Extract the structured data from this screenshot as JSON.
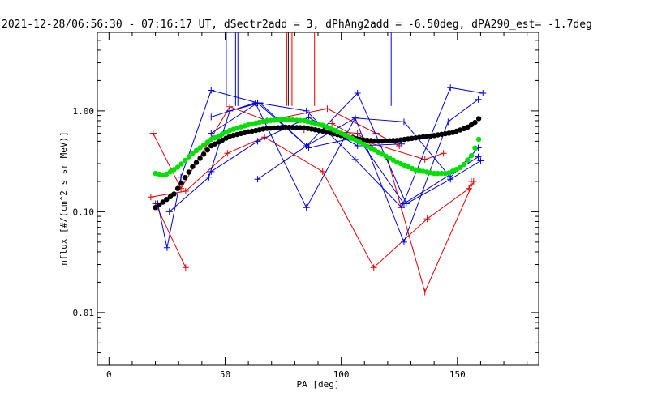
{
  "chart_data": {
    "type": "line",
    "title": "2021-12-28/06:56:30 - 07:16:17 UT, dSectr2add = 3, dPhAng2add = -6.50deg, dPA290_est=  -1.7deg",
    "xlabel": "PA [deg]",
    "ylabel": "nflux [#/(cm^2 s sr MeV)]",
    "xlim": [
      -5,
      185
    ],
    "ylim": [
      0.003,
      6
    ],
    "yscale": "log",
    "xticks": [
      {
        "value": 0,
        "label": "0"
      },
      {
        "value": 50,
        "label": "50"
      },
      {
        "value": 100,
        "label": "100"
      },
      {
        "value": 150,
        "label": "150"
      }
    ],
    "yticks": [
      {
        "value": 0.01,
        "label": "0.01"
      },
      {
        "value": 0.1,
        "label": "0.10"
      },
      {
        "value": 1.0,
        "label": "1.00"
      }
    ],
    "colors": {
      "red": "#e00000",
      "blue": "#0000e0",
      "black": "#000000",
      "green": "#00e000"
    },
    "vertical_markers": [
      {
        "x": 50.5,
        "top": 6,
        "bottom": 1.12,
        "color": "#0000e0"
      },
      {
        "x": 54.5,
        "top": 6,
        "bottom": 1.12,
        "color": "#0000e0"
      },
      {
        "x": 55.5,
        "top": 6,
        "bottom": 1.12,
        "color": "#0000e0"
      },
      {
        "x": 76.5,
        "top": 6,
        "bottom": 1.12,
        "color": "#e00000"
      },
      {
        "x": 77.2,
        "top": 6,
        "bottom": 1.12,
        "color": "#000000"
      },
      {
        "x": 78.0,
        "top": 6,
        "bottom": 1.12,
        "color": "#e00000"
      },
      {
        "x": 78.8,
        "top": 6,
        "bottom": 1.12,
        "color": "#e00000"
      },
      {
        "x": 88.5,
        "top": 6,
        "bottom": 1.12,
        "color": "#e00000"
      },
      {
        "x": 121.5,
        "top": 6,
        "bottom": 1.12,
        "color": "#0000e0"
      }
    ],
    "series": [
      {
        "color": "#e00000",
        "x": [
          19,
          31,
          52,
          68,
          94,
          115,
          125
        ],
        "y": [
          0.6,
          0.17,
          1.1,
          0.8,
          1.05,
          0.6,
          0.45
        ]
      },
      {
        "color": "#e00000",
        "x": [
          18,
          33,
          51,
          67,
          92,
          114,
          137,
          155,
          156
        ],
        "y": [
          0.14,
          0.16,
          0.38,
          0.55,
          0.25,
          0.028,
          0.085,
          0.17,
          0.2
        ]
      },
      {
        "color": "#e00000",
        "x": [
          20,
          33
        ],
        "y": [
          0.12,
          0.028
        ]
      },
      {
        "color": "#e00000",
        "x": [
          84,
          107,
          120,
          136,
          157
        ],
        "y": [
          0.65,
          0.6,
          0.33,
          0.016,
          0.2
        ]
      },
      {
        "color": "#e00000",
        "x": [
          96,
          110,
          136,
          144
        ],
        "y": [
          0.75,
          0.5,
          0.33,
          0.38
        ]
      },
      {
        "color": "#0000e0",
        "x": [
          21,
          25,
          31,
          44,
          64,
          85,
          106,
          126,
          147,
          161
        ],
        "y": [
          0.12,
          0.044,
          0.22,
          1.6,
          1.2,
          1.0,
          0.33,
          0.11,
          1.7,
          1.5
        ]
      },
      {
        "color": "#0000e0",
        "x": [
          26,
          43,
          52,
          65,
          85,
          107,
          128,
          147,
          160
        ],
        "y": [
          0.1,
          0.22,
          1.0,
          1.2,
          0.45,
          1.5,
          0.12,
          0.21,
          0.32
        ]
      },
      {
        "color": "#0000e0",
        "x": [
          44,
          63,
          85,
          106,
          127,
          146,
          159
        ],
        "y": [
          0.87,
          1.2,
          0.11,
          0.85,
          0.05,
          0.78,
          1.3
        ]
      },
      {
        "color": "#0000e0",
        "x": [
          64,
          85,
          106,
          127,
          147,
          159
        ],
        "y": [
          0.21,
          0.45,
          0.85,
          0.78,
          0.22,
          0.43
        ]
      },
      {
        "color": "#0000e0",
        "x": [
          44,
          64,
          86,
          107,
          126
        ],
        "y": [
          0.25,
          0.5,
          0.86,
          0.45,
          0.47
        ]
      },
      {
        "color": "#0000e0",
        "x": [
          44,
          64,
          86,
          107,
          127,
          159
        ],
        "y": [
          0.6,
          1.2,
          0.43,
          0.55,
          0.12,
          0.35
        ]
      }
    ],
    "fit_curves": [
      {
        "color": "#000000",
        "x": [
          20,
          28,
          36,
          44,
          52,
          60,
          68,
          76,
          84,
          92,
          100,
          108,
          116,
          124,
          132,
          140,
          148,
          154,
          158,
          160
        ],
        "y": [
          0.11,
          0.15,
          0.28,
          0.45,
          0.56,
          0.62,
          0.67,
          0.69,
          0.68,
          0.63,
          0.57,
          0.52,
          0.5,
          0.51,
          0.54,
          0.57,
          0.61,
          0.68,
          0.78,
          0.88
        ]
      },
      {
        "color": "#00e000",
        "x": [
          20,
          24,
          30,
          36,
          44,
          52,
          60,
          68,
          76,
          84,
          92,
          100,
          108,
          116,
          124,
          132,
          140,
          146,
          152,
          156,
          159,
          160
        ],
        "y": [
          0.24,
          0.23,
          0.28,
          0.38,
          0.52,
          0.64,
          0.73,
          0.8,
          0.82,
          0.8,
          0.72,
          0.6,
          0.49,
          0.39,
          0.31,
          0.26,
          0.24,
          0.24,
          0.28,
          0.36,
          0.5,
          0.62
        ]
      }
    ]
  }
}
